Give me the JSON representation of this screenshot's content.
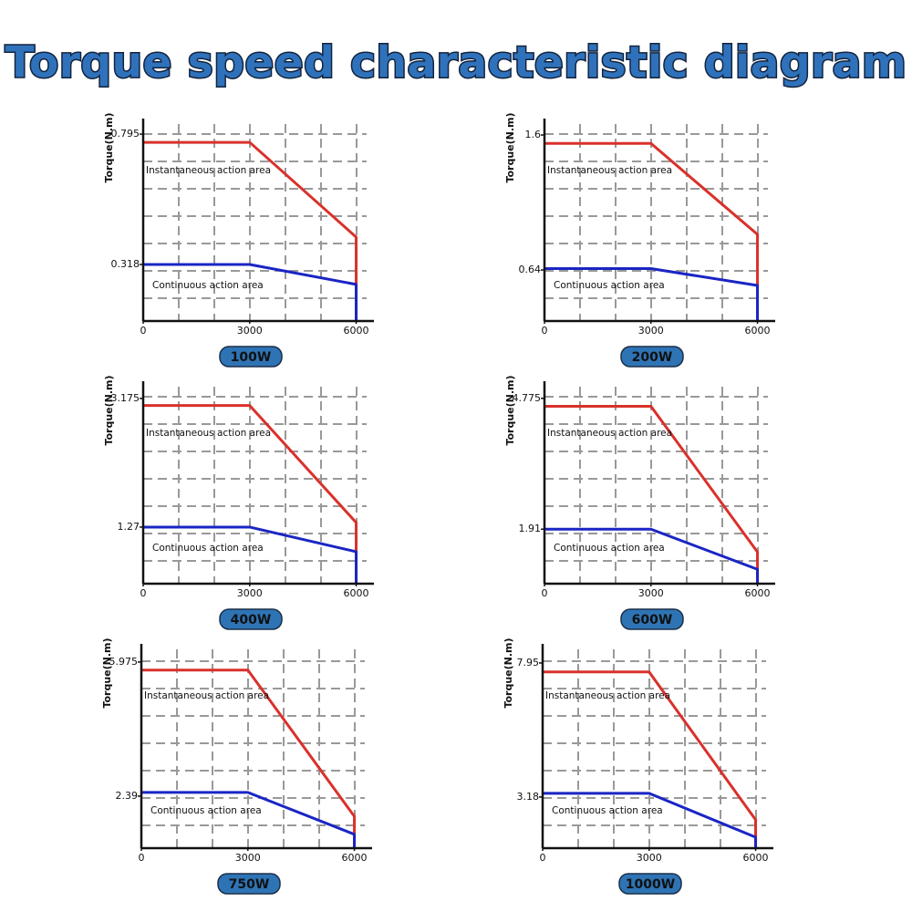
{
  "title": "Torque speed characteristic diagram",
  "chart_data": [
    {
      "type": "line",
      "title": "100W",
      "ylabel": "Torque(N.m)",
      "annotations": [
        "Instantaneous action area",
        "Continuous action area"
      ],
      "x": [
        0,
        3000,
        6000,
        6000
      ],
      "xlim": [
        0,
        6500
      ],
      "xticks": [
        0,
        3000,
        6000
      ],
      "ylim": [
        0.111,
        0.852
      ],
      "yticks": [
        0.318,
        0.795
      ],
      "grid": true,
      "series": [
        {
          "color": "#d9312b",
          "values": [
            0.765,
            0.765,
            0.418,
            0.111
          ]
        },
        {
          "color": "#1a25c4",
          "values": [
            0.318,
            0.318,
            0.245,
            0.111
          ]
        }
      ]
    },
    {
      "type": "line",
      "title": "200W",
      "ylabel": "Torque(N.m)",
      "annotations": [
        "Instantaneous action area",
        "Continuous action area"
      ],
      "x": [
        0,
        3000,
        6000,
        6000
      ],
      "xlim": [
        0,
        6500
      ],
      "xticks": [
        0,
        3000,
        6000
      ],
      "ylim": [
        0.277,
        1.717
      ],
      "yticks": [
        0.64,
        1.6
      ],
      "grid": true,
      "series": [
        {
          "color": "#d9312b",
          "values": [
            1.54,
            1.54,
            0.893,
            0.277
          ]
        },
        {
          "color": "#1a25c4",
          "values": [
            0.65,
            0.65,
            0.53,
            0.277
          ]
        }
      ]
    },
    {
      "type": "line",
      "title": "400W",
      "ylabel": "Torque(N.m)",
      "annotations": [
        "Instantaneous action area",
        "Continuous action area"
      ],
      "x": [
        0,
        3000,
        6000,
        6000
      ],
      "xlim": [
        0,
        6500
      ],
      "xticks": [
        0,
        3000,
        6000
      ],
      "ylim": [
        0.432,
        3.43
      ],
      "yticks": [
        1.27,
        3.175
      ],
      "grid": true,
      "series": [
        {
          "color": "#d9312b",
          "values": [
            3.07,
            3.07,
            1.337,
            0.432
          ]
        },
        {
          "color": "#1a25c4",
          "values": [
            1.27,
            1.27,
            0.905,
            0.432
          ]
        }
      ]
    },
    {
      "type": "line",
      "title": "600W",
      "ylabel": "Torque(N.m)",
      "annotations": [
        "Instantaneous action area",
        "Continuous action area"
      ],
      "x": [
        0,
        3000,
        6000,
        6000
      ],
      "xlim": [
        0,
        6500
      ],
      "xticks": [
        0,
        3000,
        6000
      ],
      "ylim": [
        0.716,
        5.15
      ],
      "yticks": [
        1.91,
        4.775
      ],
      "grid": true,
      "series": [
        {
          "color": "#d9312b",
          "values": [
            4.6,
            4.6,
            1.41,
            0.716
          ]
        },
        {
          "color": "#1a25c4",
          "values": [
            1.91,
            1.91,
            1.03,
            0.716
          ]
        }
      ]
    },
    {
      "type": "line",
      "title": "750W",
      "ylabel": "Torque(N.m)",
      "annotations": [
        "Instantaneous action area",
        "Continuous action area"
      ],
      "x": [
        0,
        3000,
        6000,
        6000
      ],
      "xlim": [
        0,
        6500
      ],
      "xticks": [
        0,
        3000,
        6000
      ],
      "ylim": [
        1.0,
        6.46
      ],
      "yticks": [
        2.39,
        5.975
      ],
      "grid": true,
      "series": [
        {
          "color": "#d9312b",
          "values": [
            5.76,
            5.76,
            1.85,
            1.0
          ]
        },
        {
          "color": "#1a25c4",
          "values": [
            2.49,
            2.49,
            1.37,
            1.0
          ]
        }
      ]
    },
    {
      "type": "line",
      "title": "1000W",
      "ylabel": "Torque(N.m)",
      "annotations": [
        "Instantaneous action area",
        "Continuous action area"
      ],
      "x": [
        0,
        3000,
        6000,
        6000
      ],
      "xlim": [
        0,
        6500
      ],
      "xticks": [
        0,
        3000,
        6000
      ],
      "ylim": [
        1.36,
        8.63
      ],
      "yticks": [
        3.18,
        7.95
      ],
      "grid": true,
      "series": [
        {
          "color": "#d9312b",
          "values": [
            7.63,
            7.63,
            2.37,
            1.36
          ]
        },
        {
          "color": "#1a25c4",
          "values": [
            3.31,
            3.31,
            1.75,
            1.36
          ]
        }
      ]
    }
  ]
}
